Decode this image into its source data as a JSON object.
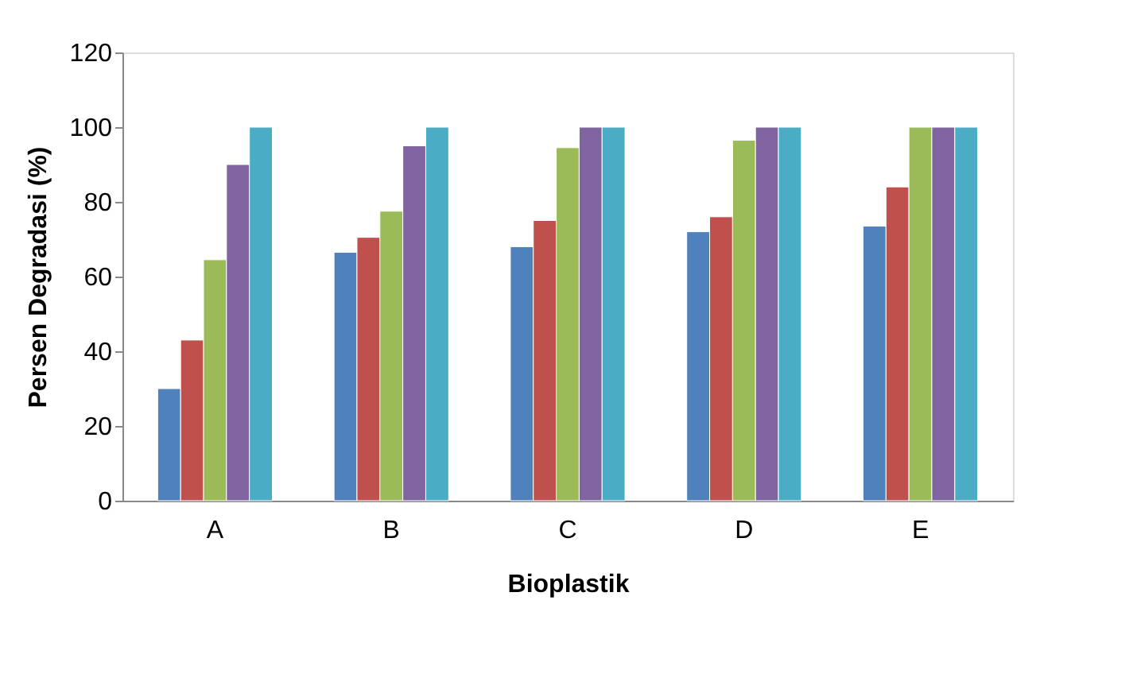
{
  "chart_data": {
    "type": "bar",
    "xlabel": "Bioplastik",
    "ylabel": "Persen Degradasi (%)",
    "categories": [
      "A",
      "B",
      "C",
      "D",
      "E"
    ],
    "series": [
      {
        "color": "#4f81bd",
        "values": [
          30,
          66.5,
          68,
          72,
          73.5
        ]
      },
      {
        "color": "#c0504d",
        "values": [
          43,
          70.5,
          75,
          76,
          84
        ]
      },
      {
        "color": "#9bbb59",
        "values": [
          64.5,
          77.5,
          94.5,
          96.5,
          100
        ]
      },
      {
        "color": "#8064a2",
        "values": [
          90,
          95,
          100,
          100,
          100
        ]
      },
      {
        "color": "#4bacc6",
        "values": [
          100,
          100,
          100,
          100,
          100
        ]
      }
    ],
    "ylim": [
      0,
      120
    ],
    "yticks": [
      0,
      20,
      40,
      60,
      80,
      100,
      120
    ],
    "grid": false,
    "legend": false
  }
}
